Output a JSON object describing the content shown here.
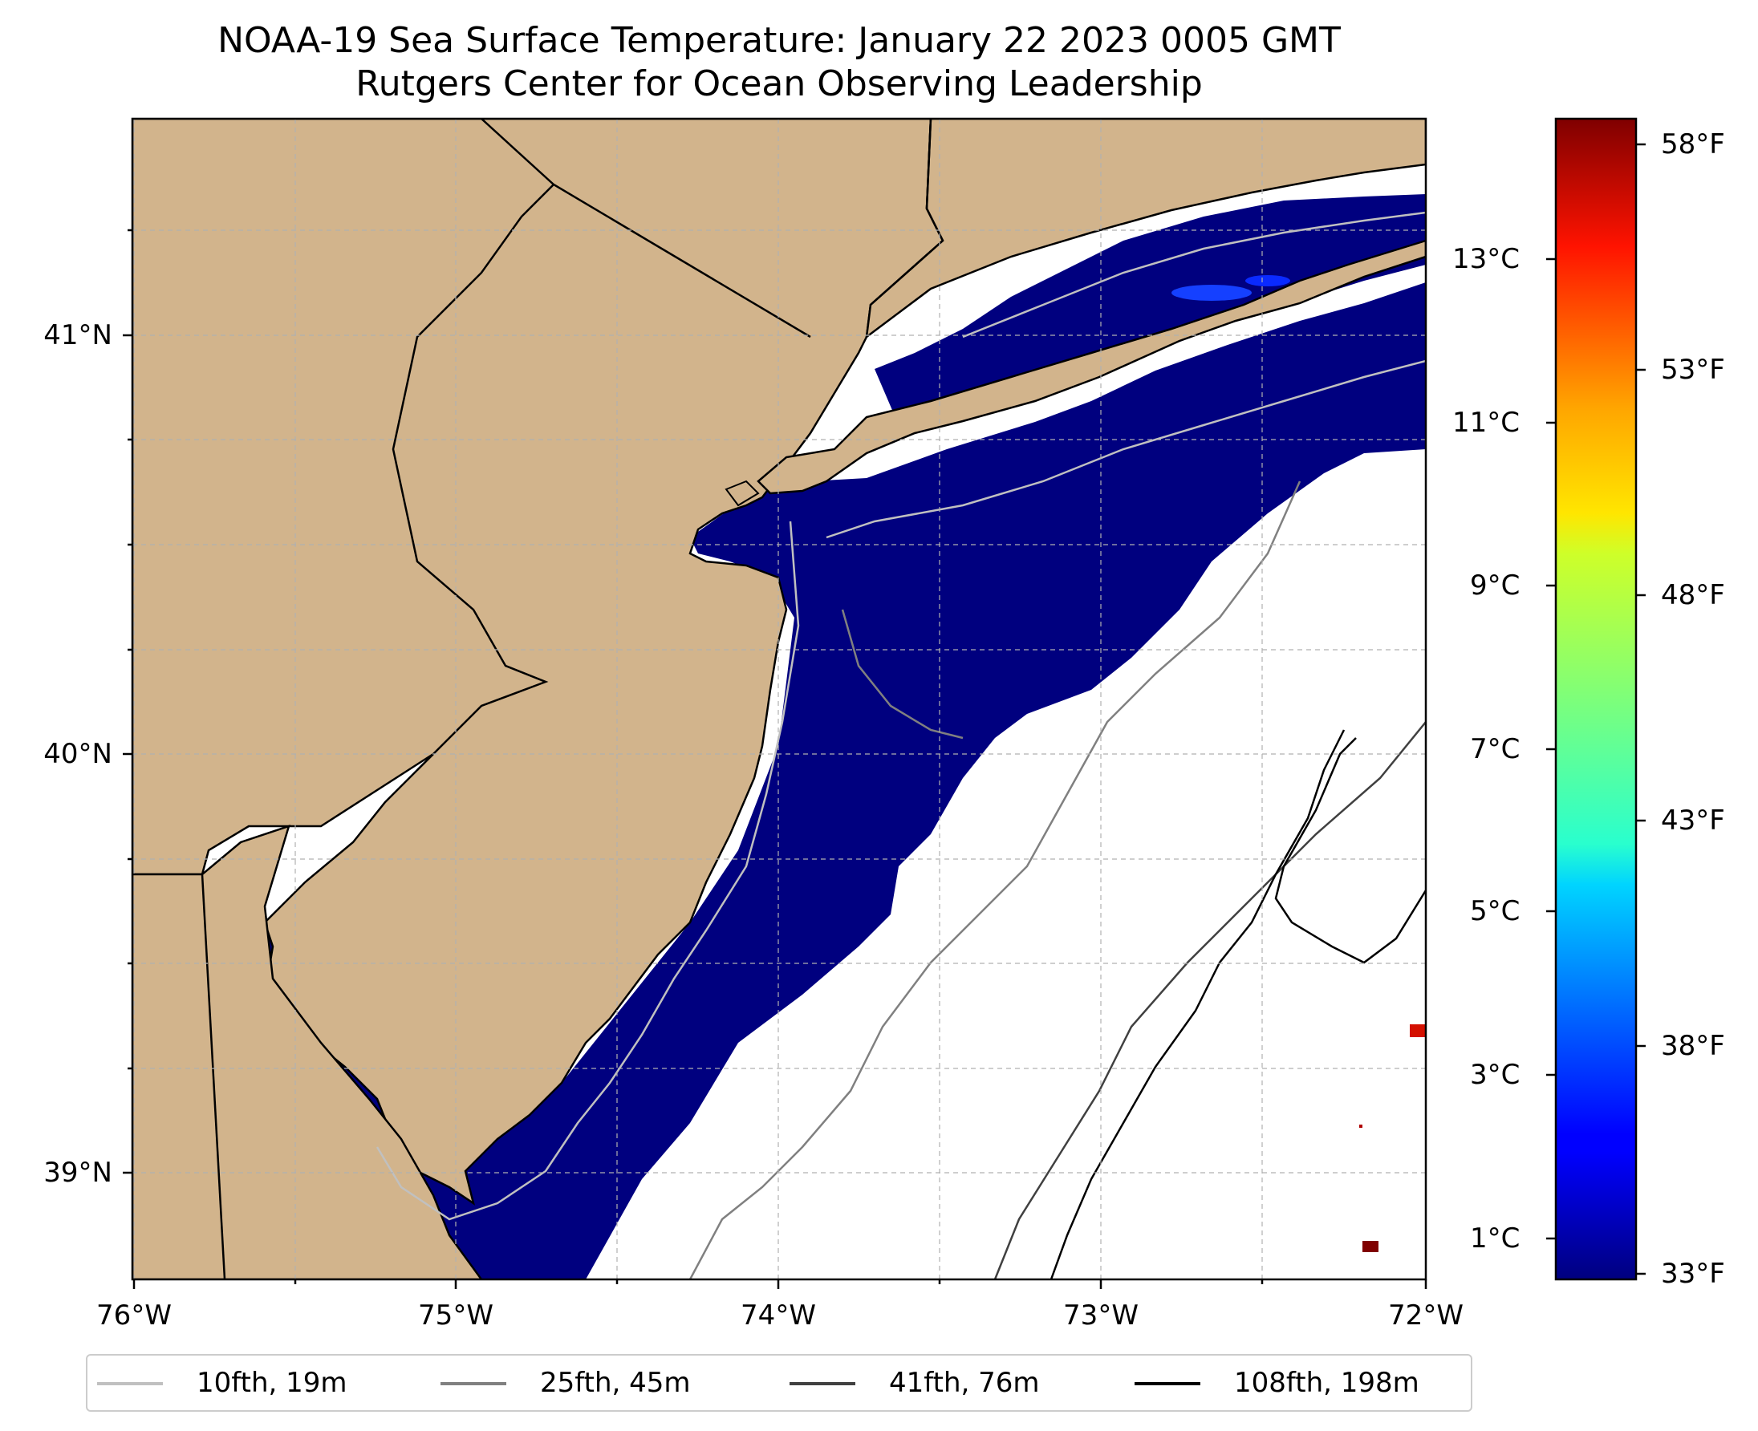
{
  "title": {
    "line1": "NOAA-19 Sea Surface Temperature: January 22 2023 0005 GMT",
    "line2": "Rutgers Center for Ocean Observing Leadership"
  },
  "map": {
    "region": "New Jersey coast, Long Island and the New York Bight",
    "x_axis_ticks": [
      "76°W",
      "75°W",
      "74°W",
      "73°W",
      "72°W"
    ],
    "y_axis_ticks": [
      "41°N",
      "40°N",
      "39°N"
    ],
    "longitude_range": [
      -76,
      -72
    ],
    "latitude_range": [
      38.7,
      41.5
    ],
    "colors": {
      "land": "#d2b48c",
      "cold_water": "#00007f",
      "no_data": "#ffffff",
      "warm_pixels": "#800000",
      "coastline": "#000000"
    }
  },
  "colorbar": {
    "celsius_ticks": [
      "13°C",
      "11°C",
      "9°C",
      "7°C",
      "5°C",
      "3°C",
      "1°C"
    ],
    "fahrenheit_ticks": [
      "58°F",
      "53°F",
      "48°F",
      "43°F",
      "38°F",
      "33°F"
    ],
    "colormap": "jet",
    "range_f": [
      32.5,
      59
    ]
  },
  "legend": {
    "items": [
      {
        "label": "10fth, 19m",
        "color": "#c0c0c0"
      },
      {
        "label": "25fth, 45m",
        "color": "#808080"
      },
      {
        "label": "41fth, 76m",
        "color": "#404040"
      },
      {
        "label": "108fth, 198m",
        "color": "#000000"
      }
    ]
  }
}
